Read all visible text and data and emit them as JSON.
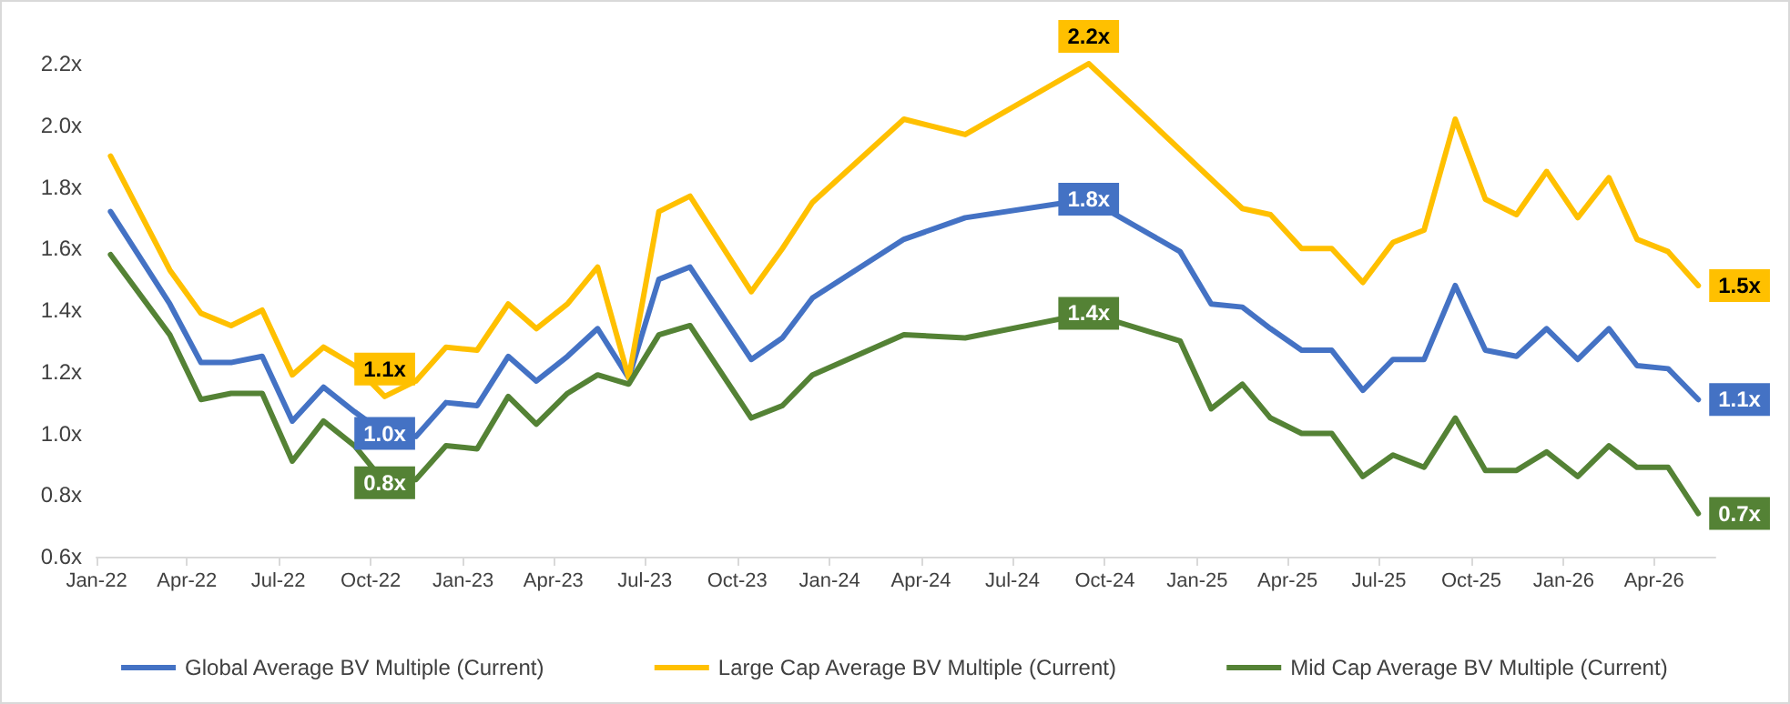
{
  "chart_data": {
    "type": "line",
    "marker": "none",
    "line_style": "solid",
    "grid": false,
    "legend": "bottom",
    "xlim": [
      "2022-01-01",
      "2026-06-01"
    ],
    "xticks": [
      {
        "value": "2022-01-01",
        "label": "Jan-22"
      },
      {
        "value": "2022-04-01",
        "label": "Apr-22"
      },
      {
        "value": "2022-07-01",
        "label": "Jul-22"
      },
      {
        "value": "2022-10-01",
        "label": "Oct-22"
      },
      {
        "value": "2023-01-01",
        "label": "Jan-23"
      },
      {
        "value": "2023-04-01",
        "label": "Apr-23"
      },
      {
        "value": "2023-07-01",
        "label": "Jul-23"
      },
      {
        "value": "2023-10-01",
        "label": "Oct-23"
      },
      {
        "value": "2024-01-01",
        "label": "Jan-24"
      },
      {
        "value": "2024-04-01",
        "label": "Apr-24"
      },
      {
        "value": "2024-07-01",
        "label": "Jul-24"
      },
      {
        "value": "2024-10-01",
        "label": "Oct-24"
      },
      {
        "value": "2025-01-01",
        "label": "Jan-25"
      },
      {
        "value": "2025-04-01",
        "label": "Apr-25"
      },
      {
        "value": "2025-07-01",
        "label": "Jul-25"
      },
      {
        "value": "2025-10-01",
        "label": "Oct-25"
      },
      {
        "value": "2026-01-01",
        "label": "Jan-26"
      },
      {
        "value": "2026-04-01",
        "label": "Apr-26"
      }
    ],
    "ylim": [
      0.6,
      2.2
    ],
    "yticks": [
      {
        "value": 0.6,
        "label": "0.6x"
      },
      {
        "value": 0.8,
        "label": "0.8x"
      },
      {
        "value": 1.0,
        "label": "1.0x"
      },
      {
        "value": 1.2,
        "label": "1.2x"
      },
      {
        "value": 1.4,
        "label": "1.4x"
      },
      {
        "value": 1.6,
        "label": "1.6x"
      },
      {
        "value": 1.8,
        "label": "1.8x"
      },
      {
        "value": 2.0,
        "label": "2.0x"
      },
      {
        "value": 2.2,
        "label": "2.2x"
      }
    ],
    "series": [
      {
        "name": "Global Average BV Multiple (Current)",
        "color": "#4472c4",
        "x": [
          "2022-01-15",
          "2022-03-15",
          "2022-04-15",
          "2022-05-15",
          "2022-06-15",
          "2022-07-15",
          "2022-08-15",
          "2022-09-15",
          "2022-10-15",
          "2022-11-15",
          "2022-12-15",
          "2023-01-15",
          "2023-02-15",
          "2023-03-15",
          "2023-04-15",
          "2023-05-15",
          "2023-06-15",
          "2023-07-15",
          "2023-08-15",
          "2023-10-15",
          "2023-11-15",
          "2023-12-15",
          "2024-03-15",
          "2024-05-15",
          "2024-09-15",
          "2024-12-15",
          "2025-01-15",
          "2025-02-15",
          "2025-03-15",
          "2025-04-15",
          "2025-05-15",
          "2025-06-15",
          "2025-07-15",
          "2025-08-15",
          "2025-09-15",
          "2025-10-15",
          "2025-11-15",
          "2025-12-15",
          "2026-01-15",
          "2026-02-15",
          "2026-03-15",
          "2026-04-15",
          "2026-05-15"
        ],
        "values": [
          1.72,
          1.42,
          1.23,
          1.23,
          1.25,
          1.04,
          1.15,
          1.07,
          1.0,
          0.99,
          1.1,
          1.09,
          1.25,
          1.17,
          1.25,
          1.34,
          1.18,
          1.5,
          1.54,
          1.24,
          1.31,
          1.44,
          1.63,
          1.7,
          1.76,
          1.59,
          1.42,
          1.41,
          1.34,
          1.27,
          1.27,
          1.14,
          1.24,
          1.24,
          1.48,
          1.27,
          1.25,
          1.34,
          1.24,
          1.34,
          1.22,
          1.21,
          1.11
        ],
        "value_labels": [
          null,
          null,
          null,
          null,
          null,
          null,
          null,
          null,
          "1.0x",
          null,
          null,
          null,
          null,
          null,
          null,
          null,
          null,
          null,
          null,
          null,
          null,
          null,
          null,
          null,
          "1.8x",
          null,
          null,
          null,
          null,
          null,
          null,
          null,
          null,
          null,
          null,
          null,
          null,
          null,
          null,
          null,
          null,
          null,
          "1.1x"
        ]
      },
      {
        "name": "Large Cap Average BV Multiple (Current)",
        "color": "#ffc000",
        "x": [
          "2022-01-15",
          "2022-03-15",
          "2022-04-15",
          "2022-05-15",
          "2022-06-15",
          "2022-07-15",
          "2022-08-15",
          "2022-09-15",
          "2022-10-15",
          "2022-11-15",
          "2022-12-15",
          "2023-01-15",
          "2023-02-15",
          "2023-03-15",
          "2023-04-15",
          "2023-05-15",
          "2023-06-15",
          "2023-07-15",
          "2023-08-15",
          "2023-10-15",
          "2023-11-15",
          "2023-12-15",
          "2024-03-15",
          "2024-05-15",
          "2024-09-15",
          "2025-02-15",
          "2025-03-15",
          "2025-04-15",
          "2025-05-15",
          "2025-06-15",
          "2025-07-15",
          "2025-08-15",
          "2025-09-15",
          "2025-10-15",
          "2025-11-15",
          "2025-12-15",
          "2026-01-15",
          "2026-02-15",
          "2026-03-15",
          "2026-04-15",
          "2026-05-15"
        ],
        "values": [
          1.9,
          1.53,
          1.39,
          1.35,
          1.4,
          1.19,
          1.28,
          1.22,
          1.12,
          1.17,
          1.28,
          1.27,
          1.42,
          1.34,
          1.42,
          1.54,
          1.18,
          1.72,
          1.77,
          1.46,
          1.6,
          1.75,
          2.02,
          1.97,
          2.2,
          1.73,
          1.71,
          1.6,
          1.6,
          1.49,
          1.62,
          1.66,
          2.02,
          1.76,
          1.71,
          1.85,
          1.7,
          1.83,
          1.63,
          1.59,
          1.48
        ],
        "value_labels": [
          null,
          null,
          null,
          null,
          null,
          null,
          null,
          null,
          "1.1x",
          null,
          null,
          null,
          null,
          null,
          null,
          null,
          null,
          null,
          null,
          null,
          null,
          null,
          null,
          null,
          "2.2x",
          null,
          null,
          null,
          null,
          null,
          null,
          null,
          null,
          null,
          null,
          null,
          null,
          null,
          null,
          null,
          "1.5x"
        ]
      },
      {
        "name": "Mid Cap Average BV Multiple (Current)",
        "color": "#548235",
        "x": [
          "2022-01-15",
          "2022-03-15",
          "2022-04-15",
          "2022-05-15",
          "2022-06-15",
          "2022-07-15",
          "2022-08-15",
          "2022-09-15",
          "2022-10-15",
          "2022-11-15",
          "2022-12-15",
          "2023-01-15",
          "2023-02-15",
          "2023-03-15",
          "2023-04-15",
          "2023-05-15",
          "2023-06-15",
          "2023-07-15",
          "2023-08-15",
          "2023-10-15",
          "2023-11-15",
          "2023-12-15",
          "2024-03-15",
          "2024-05-15",
          "2024-09-15",
          "2024-12-15",
          "2025-01-15",
          "2025-02-15",
          "2025-03-15",
          "2025-04-15",
          "2025-05-15",
          "2025-06-15",
          "2025-07-15",
          "2025-08-15",
          "2025-09-15",
          "2025-10-15",
          "2025-11-15",
          "2025-12-15",
          "2026-01-15",
          "2026-02-15",
          "2026-03-15",
          "2026-04-15",
          "2026-05-15"
        ],
        "values": [
          1.58,
          1.32,
          1.11,
          1.13,
          1.13,
          0.91,
          1.04,
          0.96,
          0.84,
          0.85,
          0.96,
          0.95,
          1.12,
          1.03,
          1.13,
          1.19,
          1.16,
          1.32,
          1.35,
          1.05,
          1.09,
          1.19,
          1.32,
          1.31,
          1.39,
          1.3,
          1.08,
          1.16,
          1.05,
          1.0,
          1.0,
          0.86,
          0.93,
          0.89,
          1.05,
          0.88,
          0.88,
          0.94,
          0.86,
          0.96,
          0.89,
          0.89,
          0.74
        ],
        "value_labels": [
          null,
          null,
          null,
          null,
          null,
          null,
          null,
          null,
          "0.8x",
          null,
          null,
          null,
          null,
          null,
          null,
          null,
          null,
          null,
          null,
          null,
          null,
          null,
          null,
          null,
          "1.4x",
          null,
          null,
          null,
          null,
          null,
          null,
          null,
          null,
          null,
          null,
          null,
          null,
          null,
          null,
          null,
          null,
          null,
          "0.7x"
        ]
      }
    ]
  }
}
